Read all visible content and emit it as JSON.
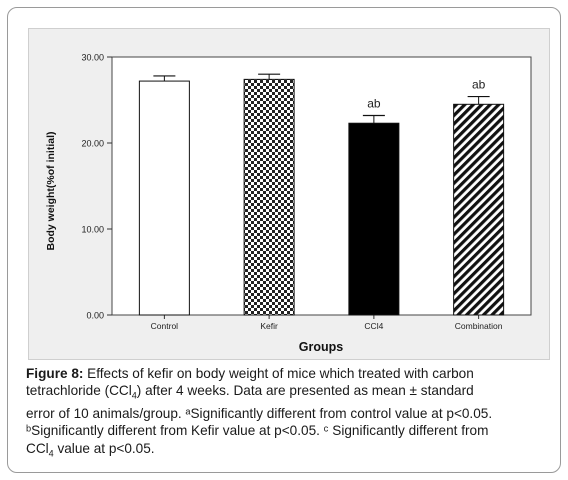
{
  "chart_data": {
    "type": "bar",
    "categories": [
      "Control",
      "Kefir",
      "CCl4",
      "Combination"
    ],
    "values": [
      27.2,
      27.4,
      22.3,
      24.5
    ],
    "errors": [
      0.6,
      0.6,
      0.9,
      0.9
    ],
    "annotations": [
      "",
      "",
      "ab",
      "ab"
    ],
    "patterns": [
      "white",
      "checker",
      "black",
      "diagonal"
    ],
    "xlabel": "Groups",
    "ylabel": "Body weight(%of initial)",
    "ylim": [
      0,
      30
    ],
    "yticks": [
      "0.00",
      "10.00",
      "20.00",
      "30.00"
    ],
    "grid": false,
    "legend": "none"
  },
  "caption": {
    "figure_label": "Figure 8:",
    "line1_rest": " Effects of kefir on body weight of mice which treated with carbon",
    "line2": "tetrachloride (CCl",
    "line2_sub": "4",
    "line2_rest": ") after 4 weeks. Data are presented as mean ± standard",
    "line3": "error of 10 animals/group. ᵃSignificantly different from control value at p<0.05.",
    "line4": "ᵇSignificantly different from Kefir value at p<0.05. ᶜ Significantly different from",
    "line5": "CCl",
    "line5_sub": "4",
    "line5_rest": " value at p<0.05."
  }
}
